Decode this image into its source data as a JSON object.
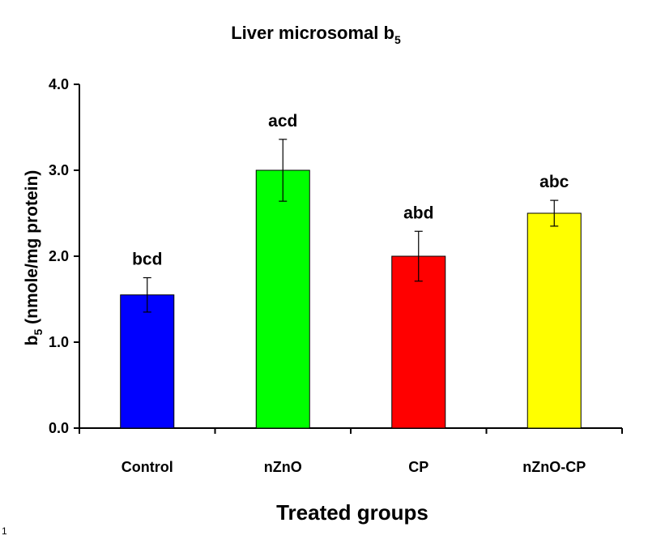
{
  "chart_data": {
    "type": "bar",
    "title": {
      "main": "Liver microsomal b",
      "sub": "5"
    },
    "ylabel": {
      "pre": "b",
      "sub": "5",
      "post": " (nmole/mg protein)"
    },
    "xlabel": "Treated groups",
    "ylim": [
      0,
      4
    ],
    "yticks": [
      "0.0",
      "1.0",
      "2.0",
      "3.0",
      "4.0"
    ],
    "categories": [
      "Control",
      "nZnO",
      "CP",
      "nZnO-CP"
    ],
    "values": [
      1.55,
      3.0,
      2.0,
      2.5
    ],
    "errors": [
      0.2,
      0.36,
      0.29,
      0.15
    ],
    "bar_labels": [
      "bcd",
      "acd",
      "abd",
      "abc"
    ],
    "colors": [
      "#0000FF",
      "#00FF00",
      "#FF0000",
      "#FFFF00"
    ],
    "grid": false,
    "legend": "none"
  },
  "corner_mark": "1"
}
